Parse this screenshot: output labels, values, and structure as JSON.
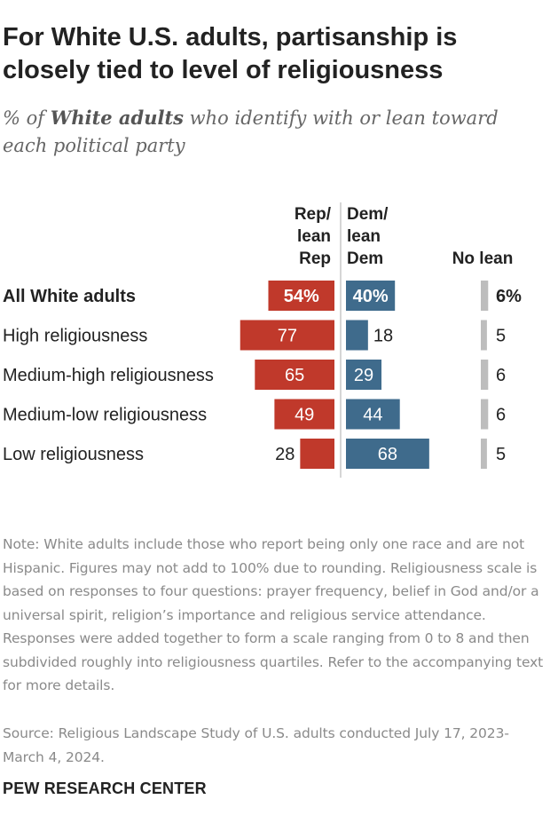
{
  "title": "For White U.S. adults, partisanship is closely tied to level of religiousness",
  "subtitle": {
    "prefix": "% of ",
    "emphasis": "White adults",
    "suffix": " who identify with or lean toward each political party"
  },
  "chart_data": {
    "type": "bar",
    "categories": [
      "All White adults",
      "High religiousness",
      "Medium-high religiousness",
      "Medium-low religiousness",
      "Low religiousness"
    ],
    "series": [
      {
        "name": "Rep/ lean Rep",
        "header_lines": [
          "Rep/",
          "lean",
          "Rep"
        ],
        "values": [
          54,
          77,
          65,
          49,
          28
        ],
        "color": "#c0392b"
      },
      {
        "name": "Dem/ lean Dem",
        "header_lines": [
          "Dem/",
          "lean",
          "Dem"
        ],
        "values": [
          40,
          18,
          29,
          44,
          68
        ],
        "color": "#3f6b8c"
      },
      {
        "name": "No lean",
        "header_lines": [
          "No lean"
        ],
        "values": [
          6,
          5,
          6,
          6,
          5
        ],
        "color": "#bdbdbd"
      }
    ],
    "first_row_label_suffix": "%",
    "xlabel": "",
    "ylabel": ""
  },
  "note": "Note: White adults include those who report being only one race and are not Hispanic. Figures may not add to 100% due to rounding. Religiousness scale is based on responses to four questions: prayer frequency, belief in God and/or a universal spirit, religion’s importance and religious service attendance. Responses were added together to form a scale ranging from 0 to 8 and then subdivided roughly into religiousness quartiles. Refer to the accompanying text for more details.",
  "source": "Source: Religious Landscape Study of U.S. adults conducted July 17, 2023-March 4, 2024.",
  "org": "PEW RESEARCH CENTER"
}
